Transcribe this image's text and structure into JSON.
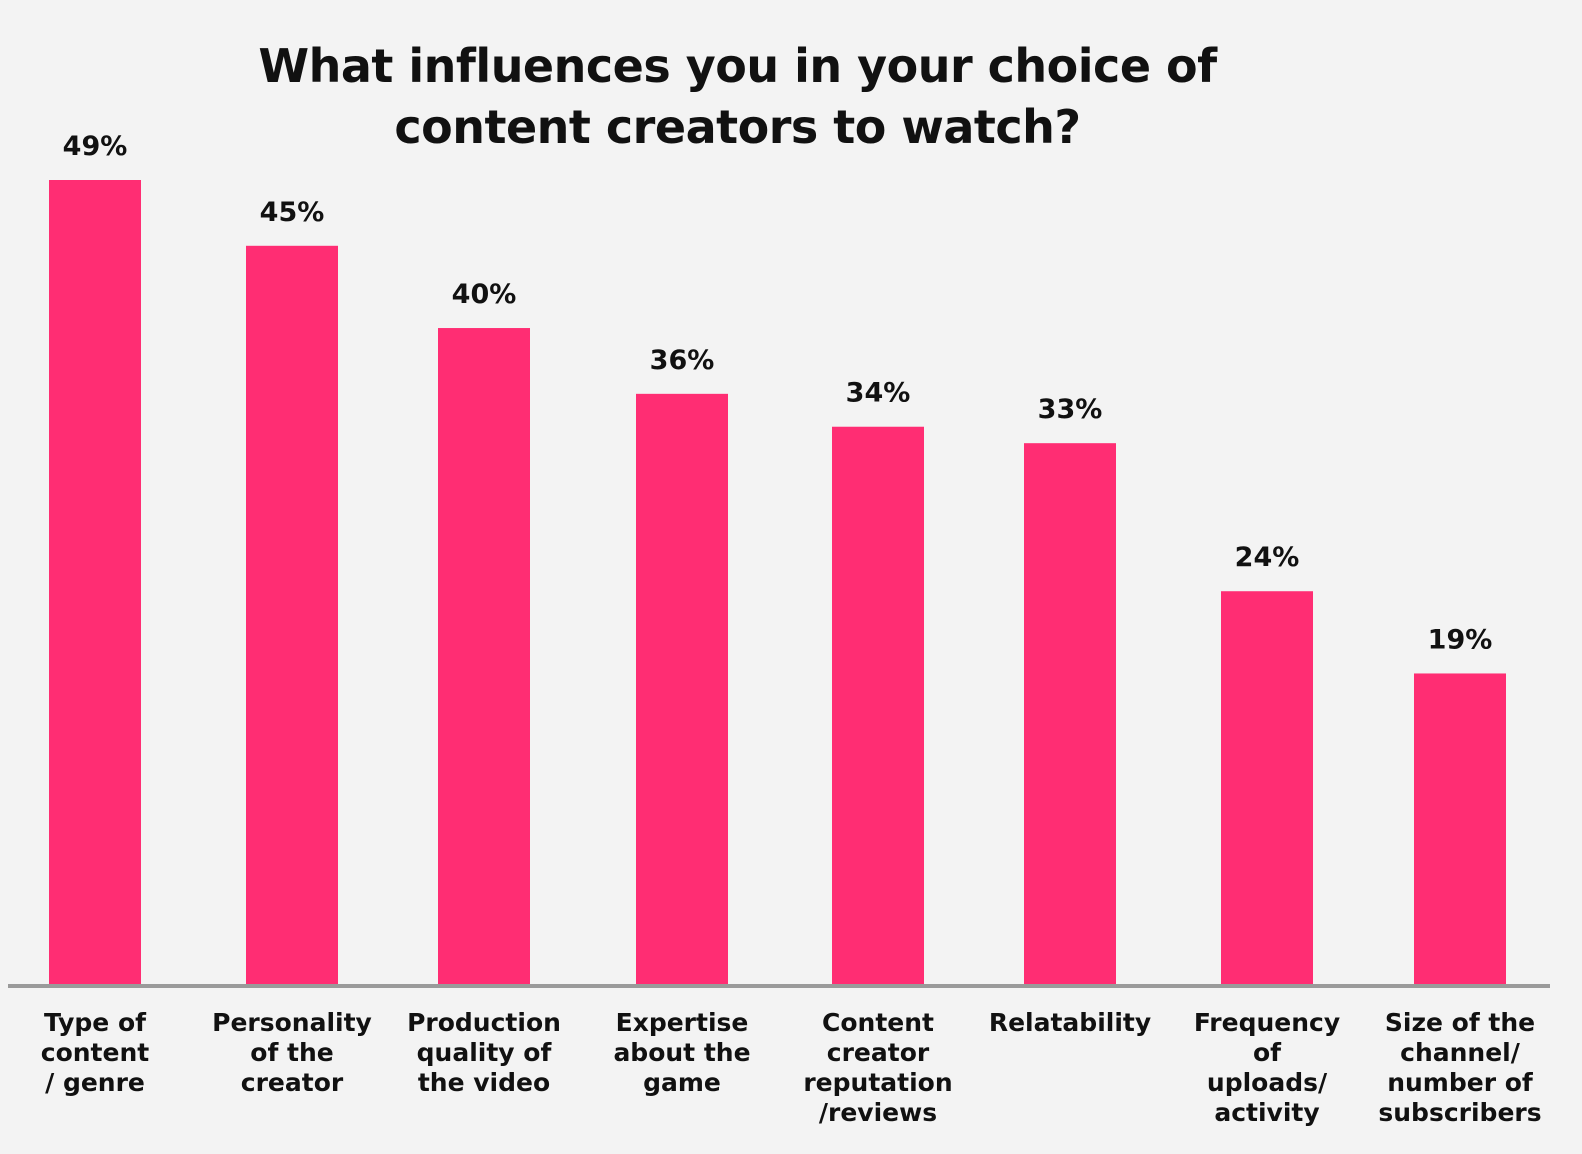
{
  "chart_data": {
    "type": "bar",
    "title_lines": [
      "What influences you in your choice of",
      "content creators to watch?"
    ],
    "categories": [
      [
        "Type of",
        "content",
        "/ genre"
      ],
      [
        "Personality",
        "of the",
        "creator"
      ],
      [
        "Production",
        "quality of",
        "the video"
      ],
      [
        "Expertise",
        "about the",
        "game"
      ],
      [
        "Content",
        "creator",
        "reputation",
        "/reviews"
      ],
      [
        "Relatability"
      ],
      [
        "Frequency",
        "of",
        "uploads/",
        "activity"
      ],
      [
        "Size of the",
        "channel/",
        "number of",
        "subscribers"
      ]
    ],
    "values": [
      49,
      45,
      40,
      36,
      34,
      33,
      24,
      19
    ],
    "value_labels": [
      "49%",
      "45%",
      "40%",
      "36%",
      "34%",
      "33%",
      "24%",
      "19%"
    ],
    "ylim": [
      0,
      49
    ],
    "grid": false,
    "legend": "none",
    "colors": {
      "bar": "#ff2d73",
      "axis": "#9a9a9a",
      "background": "#f3f3f3",
      "text": "#111111"
    }
  }
}
